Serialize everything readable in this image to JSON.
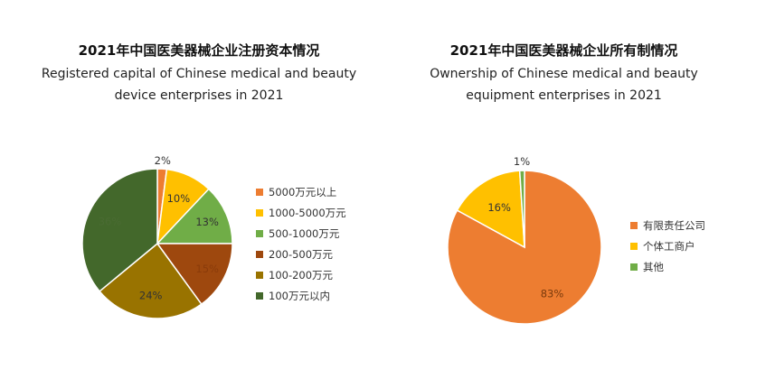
{
  "charts": [
    {
      "title_cn": "2021年中国医美器械企业注册资本情况",
      "title_en_line1": "Registered capital of Chinese medical and beauty",
      "title_en_line2": "device enterprises in 2021"
    },
    {
      "title_cn": "2021年中国医美器械企业所有制情况",
      "title_en_line1": "Ownership of Chinese medical and beauty",
      "title_en_line2": "equipment enterprises in 2021"
    }
  ],
  "chart_data": [
    {
      "type": "pie",
      "title": "2021年中国医美器械企业注册资本情况",
      "subtitle": "Registered capital of Chinese medical and beauty device enterprises in 2021",
      "legend_position": "right",
      "categories": [
        "5000万元以上",
        "1000-5000万元",
        "500-1000万元",
        "200-500万元",
        "100-200万元",
        "100万元以内"
      ],
      "values": [
        2,
        10,
        13,
        15,
        24,
        36
      ],
      "labels": [
        "2%",
        "10%",
        "13%",
        "15%",
        "24%",
        "36%"
      ],
      "colors": [
        "#ED7D31",
        "#FFC000",
        "#70AD47",
        "#9E480E",
        "#997300",
        "#43682B"
      ]
    },
    {
      "type": "pie",
      "title": "2021年中国医美器械企业所有制情况",
      "subtitle": "Ownership of Chinese medical and beauty equipment enterprises in 2021",
      "legend_position": "right",
      "categories": [
        "有限责任公司",
        "个体工商户",
        "其他"
      ],
      "values": [
        83,
        16,
        1
      ],
      "labels": [
        "83%",
        "16%",
        "1%"
      ],
      "colors": [
        "#ED7D31",
        "#FFC000",
        "#70AD47"
      ]
    }
  ]
}
